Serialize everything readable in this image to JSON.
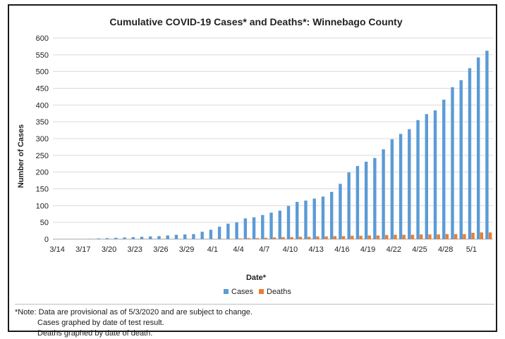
{
  "chart_data": {
    "type": "bar",
    "title": "Cumulative COVID-19 Cases* and Deaths*: Winnebago County",
    "xlabel": "Date*",
    "ylabel": "Number of Cases",
    "ylim": [
      0,
      600
    ],
    "yticks": [
      0,
      50,
      100,
      150,
      200,
      250,
      300,
      350,
      400,
      450,
      500,
      550,
      600
    ],
    "grid": "horizontal",
    "legend_position": "bottom",
    "categories": [
      "3/14",
      "3/15",
      "3/16",
      "3/17",
      "3/18",
      "3/19",
      "3/20",
      "3/21",
      "3/22",
      "3/23",
      "3/24",
      "3/25",
      "3/26",
      "3/27",
      "3/28",
      "3/29",
      "3/30",
      "3/31",
      "4/1",
      "4/2",
      "4/3",
      "4/4",
      "4/5",
      "4/6",
      "4/7",
      "4/8",
      "4/9",
      "4/10",
      "4/11",
      "4/12",
      "4/13",
      "4/14",
      "4/15",
      "4/16",
      "4/17",
      "4/18",
      "4/19",
      "4/20",
      "4/21",
      "4/22",
      "4/23",
      "4/24",
      "4/25",
      "4/26",
      "4/27",
      "4/28",
      "4/29",
      "4/30",
      "5/1",
      "5/2",
      "5/3"
    ],
    "tick_labels": [
      "3/14",
      "3/17",
      "3/20",
      "3/23",
      "3/26",
      "3/29",
      "4/1",
      "4/4",
      "4/7",
      "4/10",
      "4/13",
      "4/16",
      "4/19",
      "4/22",
      "4/25",
      "4/28",
      "5/1"
    ],
    "series": [
      {
        "name": "Cases",
        "color": "#5b9bd5",
        "values": [
          0,
          0,
          0,
          0,
          1,
          2,
          3,
          4,
          5,
          6,
          7,
          8,
          9,
          11,
          13,
          14,
          15,
          22,
          28,
          37,
          46,
          50,
          62,
          65,
          72,
          79,
          85,
          99,
          111,
          115,
          121,
          127,
          141,
          165,
          199,
          218,
          231,
          242,
          268,
          298,
          314,
          328,
          355,
          373,
          384,
          416,
          453,
          474,
          510,
          542,
          562
        ]
      },
      {
        "name": "Deaths",
        "color": "#ed7d31",
        "values": [
          0,
          0,
          0,
          0,
          0,
          0,
          0,
          0,
          0,
          0,
          0,
          0,
          0,
          0,
          0,
          0,
          0,
          0,
          0,
          1,
          1,
          2,
          3,
          3,
          4,
          5,
          6,
          6,
          7,
          7,
          8,
          8,
          9,
          9,
          10,
          10,
          11,
          11,
          12,
          13,
          13,
          13,
          14,
          14,
          14,
          15,
          15,
          15,
          19,
          20,
          20
        ]
      }
    ]
  },
  "note": {
    "line1": "*Note: Data are provisional as of 5/3/2020 and are subject to change.",
    "line2": "Cases graphed by date of test result.",
    "line3": "Deaths graphed by date of death."
  }
}
